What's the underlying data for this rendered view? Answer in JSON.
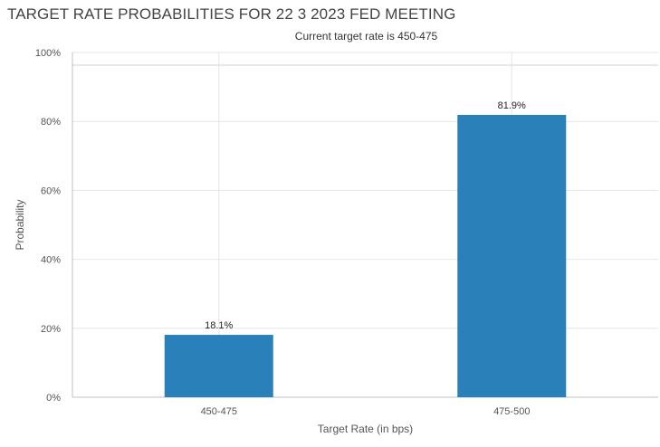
{
  "chart_data": {
    "type": "bar",
    "title": "TARGET RATE PROBABILITIES FOR 22 3 2023 FED MEETING",
    "subtitle": "Current target rate is 450-475",
    "categories": [
      "450-475",
      "475-500"
    ],
    "values": [
      18.1,
      81.9
    ],
    "data_labels": [
      "18.1%",
      "81.9%"
    ],
    "xlabel": "Target Rate (in bps)",
    "ylabel": "Probability",
    "ylim": [
      0,
      100
    ],
    "yticks": [
      0,
      20,
      40,
      60,
      80,
      100
    ],
    "ytick_labels": [
      "0%",
      "20%",
      "40%",
      "60%",
      "80%",
      "100%"
    ],
    "grid": true,
    "legend": "none",
    "colors": {
      "bar": "#2a80b9",
      "grid": "#e6e6e6",
      "axis": "#c0c0c0",
      "text": "#333333"
    }
  }
}
